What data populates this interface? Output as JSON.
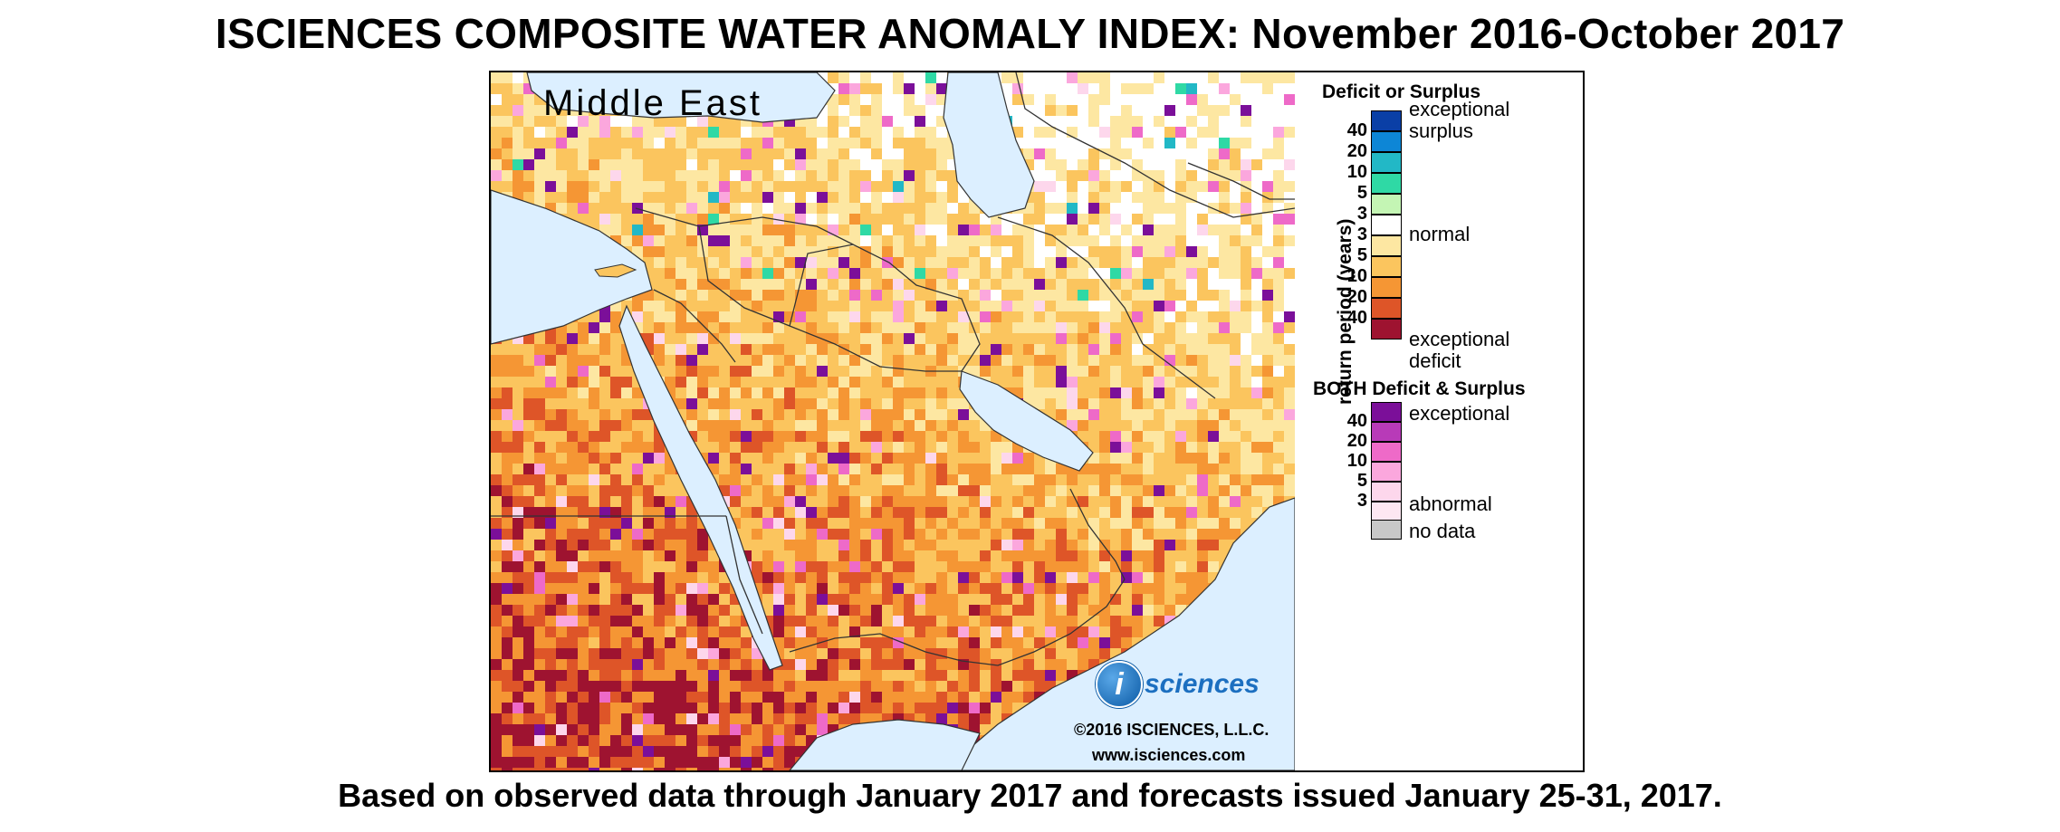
{
  "title": "ISCIENCES COMPOSITE WATER ANOMALY INDEX: November 2016-October 2017",
  "subtitle": "Based on observed data through January 2017 and forecasts issued January 25-31, 2017.",
  "map": {
    "region_label": "Middle East",
    "logo_letter": "i",
    "logo_text": "sciences",
    "copyright": "©2016 ISCIENCES, L.L.C.",
    "website": "www.isciences.com"
  },
  "legend": {
    "deficit_surplus_heading": "Deficit or Surplus",
    "axis_label": "return period (years)",
    "deficit_surplus_scale": [
      {
        "tick": "",
        "color": "#0a3fa6"
      },
      {
        "tick": "40",
        "color": "#0d86d6"
      },
      {
        "tick": "20",
        "color": "#22b8c6"
      },
      {
        "tick": "10",
        "color": "#2fd9a5"
      },
      {
        "tick": "5",
        "color": "#c4f5b4"
      },
      {
        "tick": "3",
        "color": "#ffffff"
      },
      {
        "tick": "3",
        "color": "#fde7a2"
      },
      {
        "tick": "5",
        "color": "#fbc55e"
      },
      {
        "tick": "10",
        "color": "#f59634"
      },
      {
        "tick": "20",
        "color": "#de5528"
      },
      {
        "tick": "40",
        "color": "#9e1330"
      }
    ],
    "surplus_label_1": "exceptional",
    "surplus_label_2": "surplus",
    "normal_label": "normal",
    "deficit_label_1": "exceptional",
    "deficit_label_2": "deficit",
    "both_heading": "BOTH Deficit & Surplus",
    "both_scale": [
      {
        "tick": "",
        "color": "#7b0f99"
      },
      {
        "tick": "40",
        "color": "#b83ab8"
      },
      {
        "tick": "20",
        "color": "#ee6ac8"
      },
      {
        "tick": "10",
        "color": "#fba7dd"
      },
      {
        "tick": "5",
        "color": "#fdd7ec"
      },
      {
        "tick": "3",
        "color": "#fde7f2"
      }
    ],
    "both_exceptional_label": "exceptional",
    "both_abnormal_label": "abnormal",
    "no_data_label": "no data",
    "no_data_color": "#c8c8c8"
  }
}
